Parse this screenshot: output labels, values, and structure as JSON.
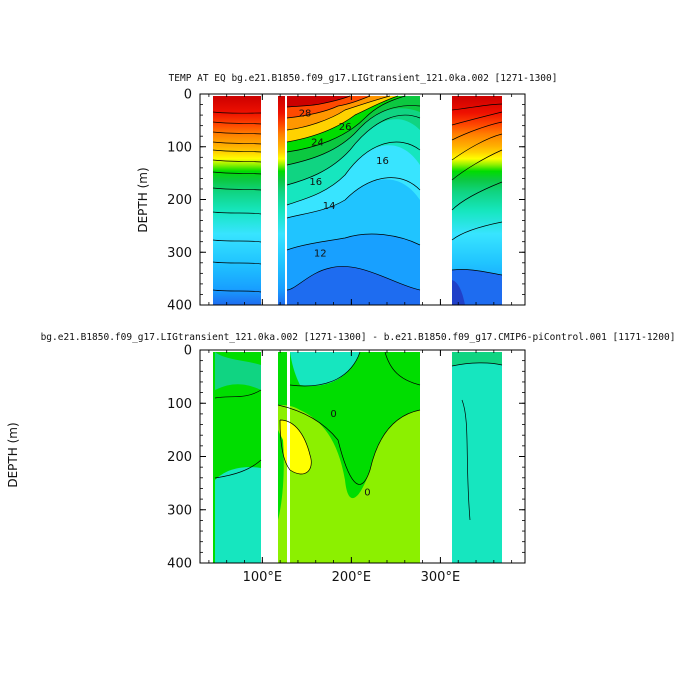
{
  "chart_data": [
    {
      "type": "heatmap",
      "title": "TEMP AT EQ bg.e21.B1850.f09_g17.LIGtransient_121.0ka.002 [1271-1300]",
      "xlabel": "",
      "ylabel": "DEPTH (m)",
      "xlim": [
        30,
        395
      ],
      "ylim": [
        0,
        400
      ],
      "y_inverted": true,
      "x_tick_labels": [
        "100°E",
        "200°E",
        "300°E"
      ],
      "x_ticks": [
        100,
        200,
        300
      ],
      "y_tick_labels": [
        "0",
        "100",
        "200",
        "300",
        "400"
      ],
      "y_ticks": [
        0,
        100,
        200,
        300,
        400
      ],
      "contour_labels": [
        {
          "text": "28",
          "lon": 148,
          "depth": 40
        },
        {
          "text": "26",
          "lon": 193,
          "depth": 65
        },
        {
          "text": "24",
          "lon": 162,
          "depth": 95
        },
        {
          "text": "16",
          "lon": 235,
          "depth": 130
        },
        {
          "text": "16",
          "lon": 160,
          "depth": 170
        },
        {
          "text": "14",
          "lon": 175,
          "depth": 215
        },
        {
          "text": "12",
          "lon": 165,
          "depth": 305
        }
      ],
      "ocean_segments": [
        [
          45,
          97
        ],
        [
          108,
          120
        ],
        [
          124,
          277
        ],
        [
          311,
          366
        ]
      ],
      "land_segments": [
        [
          97,
          108
        ],
        [
          120,
          124
        ],
        [
          277,
          311
        ],
        [
          366,
          395
        ]
      ],
      "colors": [
        "#2040c8",
        "#1e6cf0",
        "#18a0ff",
        "#20c4ff",
        "#38e4ff",
        "#16e6bf",
        "#10d482",
        "#0cc840",
        "#00dd00",
        "#8cf000",
        "#d4f000",
        "#ffff00",
        "#ffd200",
        "#ffb000",
        "#ff9700",
        "#ff7c00",
        "#ff4a00",
        "#ee1000",
        "#cc0000"
      ]
    },
    {
      "type": "heatmap",
      "title": "bg.e21.B1850.f09_g17.LIGtransient_121.0ka.002 [1271-1300] - b.e21.B1850.f09_g17.CMIP6-piControl.001 [1171-1200]",
      "xlabel": "",
      "ylabel": "DEPTH (m)",
      "xlim": [
        30,
        395
      ],
      "ylim": [
        0,
        400
      ],
      "y_inverted": true,
      "x_tick_labels": [
        "100°E",
        "200°E",
        "300°E"
      ],
      "x_ticks": [
        100,
        200,
        300
      ],
      "y_tick_labels": [
        "0",
        "100",
        "200",
        "300",
        "400"
      ],
      "y_ticks": [
        0,
        100,
        200,
        300,
        400
      ],
      "contour_labels": [
        {
          "text": "0",
          "lon": 180,
          "depth": 123
        },
        {
          "text": "0",
          "lon": 218,
          "depth": 270
        }
      ],
      "ocean_segments": [
        [
          45,
          97
        ],
        [
          108,
          120
        ],
        [
          124,
          277
        ],
        [
          311,
          366
        ]
      ],
      "land_segments": [
        [
          97,
          108
        ],
        [
          120,
          124
        ],
        [
          277,
          311
        ],
        [
          366,
          395
        ]
      ],
      "colors": [
        "#16e6bf",
        "#10d482",
        "#00dd00",
        "#8cf000",
        "#ffff00"
      ]
    }
  ]
}
